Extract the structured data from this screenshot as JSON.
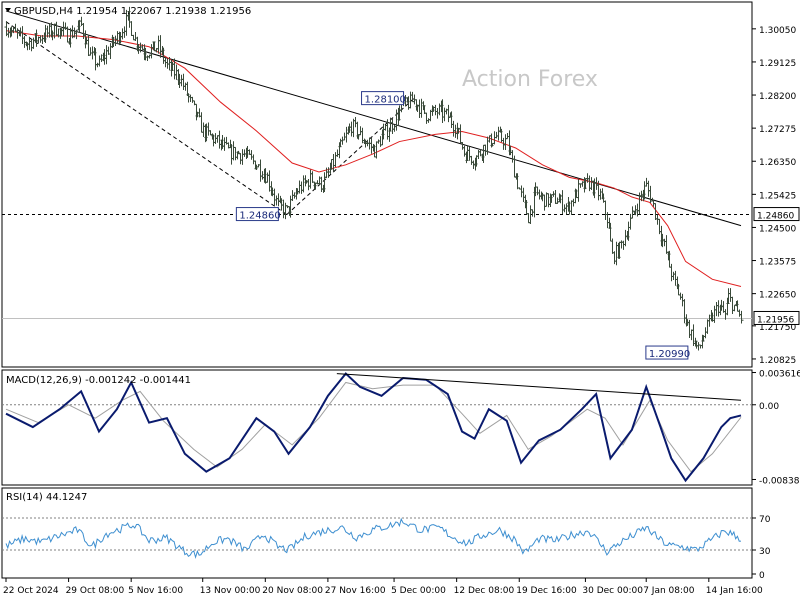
{
  "chart_data": [
    {
      "type": "candlestick",
      "title": "GBPUSD,H4  1.21954 1.22067 1.21938 1.21956",
      "watermark": "Action Forex",
      "ylim": [
        1.206,
        1.308
      ],
      "yticks": [
        1.3005,
        1.29125,
        1.282,
        1.27275,
        1.2635,
        1.25425,
        1.245,
        1.23575,
        1.2265,
        1.2175,
        1.20825
      ],
      "ytick_labels": [
        "1.30050",
        "1.29125",
        "1.28200",
        "1.27275",
        "1.26350",
        "1.25425",
        "1.24500",
        "1.23575",
        "1.22650",
        "1.21750",
        "1.20825"
      ],
      "xticks": [
        {
          "bar": 0,
          "label": "22 Oct 2024"
        },
        {
          "bar": 35,
          "label": "29 Oct 08:00"
        },
        {
          "bar": 70,
          "label": "5 Nov 16:00"
        },
        {
          "bar": 110,
          "label": "13 Nov 00:00"
        },
        {
          "bar": 145,
          "label": "20 Nov 08:00"
        },
        {
          "bar": 180,
          "label": "27 Nov 16:00"
        },
        {
          "bar": 217,
          "label": "5 Dec 00:00"
        },
        {
          "bar": 252,
          "label": "12 Dec 08:00"
        },
        {
          "bar": 287,
          "label": "19 Dec 16:00"
        },
        {
          "bar": 324,
          "label": "30 Dec 00:00"
        },
        {
          "bar": 358,
          "label": "7 Jan 08:00"
        },
        {
          "bar": 393,
          "label": "14 Jan 16:00"
        }
      ],
      "bar_count": 412,
      "price_path": [
        [
          0,
          1.301
        ],
        [
          5,
          1.299
        ],
        [
          12,
          1.2965
        ],
        [
          20,
          1.2985
        ],
        [
          28,
          1.3005
        ],
        [
          35,
          1.2985
        ],
        [
          42,
          1.3015
        ],
        [
          47,
          1.293
        ],
        [
          52,
          1.2905
        ],
        [
          58,
          1.2955
        ],
        [
          64,
          1.2995
        ],
        [
          68,
          1.3035
        ],
        [
          72,
          1.2975
        ],
        [
          78,
          1.294
        ],
        [
          85,
          1.2955
        ],
        [
          90,
          1.29
        ],
        [
          97,
          1.287
        ],
        [
          103,
          1.28
        ],
        [
          110,
          1.272
        ],
        [
          118,
          1.269
        ],
        [
          125,
          1.266
        ],
        [
          133,
          1.2655
        ],
        [
          140,
          1.2625
        ],
        [
          146,
          1.259
        ],
        [
          152,
          1.251
        ],
        [
          157,
          1.2495
        ],
        [
          163,
          1.2555
        ],
        [
          170,
          1.2585
        ],
        [
          177,
          1.257
        ],
        [
          182,
          1.262
        ],
        [
          188,
          1.2685
        ],
        [
          193,
          1.2735
        ],
        [
          200,
          1.2695
        ],
        [
          206,
          1.2665
        ],
        [
          210,
          1.2705
        ],
        [
          216,
          1.274
        ],
        [
          222,
          1.279
        ],
        [
          228,
          1.2805
        ],
        [
          235,
          1.2765
        ],
        [
          242,
          1.2775
        ],
        [
          247,
          1.276
        ],
        [
          252,
          1.2725
        ],
        [
          256,
          1.266
        ],
        [
          262,
          1.264
        ],
        [
          268,
          1.268
        ],
        [
          274,
          1.2705
        ],
        [
          280,
          1.269
        ],
        [
          284,
          1.261
        ],
        [
          289,
          1.252
        ],
        [
          292,
          1.248
        ],
        [
          296,
          1.2545
        ],
        [
          302,
          1.2525
        ],
        [
          308,
          1.253
        ],
        [
          314,
          1.2505
        ],
        [
          320,
          1.2555
        ],
        [
          326,
          1.2575
        ],
        [
          332,
          1.254
        ],
        [
          336,
          1.2475
        ],
        [
          339,
          1.237
        ],
        [
          343,
          1.239
        ],
        [
          348,
          1.2455
        ],
        [
          352,
          1.2505
        ],
        [
          356,
          1.255
        ],
        [
          358,
          1.2565
        ],
        [
          362,
          1.251
        ],
        [
          366,
          1.243
        ],
        [
          369,
          1.238
        ],
        [
          373,
          1.2305
        ],
        [
          377,
          1.2255
        ],
        [
          380,
          1.219
        ],
        [
          384,
          1.214
        ],
        [
          387,
          1.2105
        ],
        [
          390,
          1.215
        ],
        [
          394,
          1.219
        ],
        [
          398,
          1.223
        ],
        [
          402,
          1.2205
        ],
        [
          404,
          1.2255
        ],
        [
          408,
          1.222
        ],
        [
          411,
          1.2196
        ]
      ],
      "ma_path": [
        [
          0,
          1.3
        ],
        [
          20,
          1.2985
        ],
        [
          40,
          1.2985
        ],
        [
          60,
          1.2975
        ],
        [
          80,
          1.2955
        ],
        [
          100,
          1.2895
        ],
        [
          120,
          1.28
        ],
        [
          140,
          1.272
        ],
        [
          160,
          1.263
        ],
        [
          175,
          1.2605
        ],
        [
          190,
          1.2625
        ],
        [
          205,
          1.2655
        ],
        [
          220,
          1.269
        ],
        [
          240,
          1.271
        ],
        [
          255,
          1.2718
        ],
        [
          270,
          1.27
        ],
        [
          285,
          1.2672
        ],
        [
          300,
          1.2625
        ],
        [
          315,
          1.259
        ],
        [
          330,
          1.2575
        ],
        [
          340,
          1.256
        ],
        [
          350,
          1.2535
        ],
        [
          360,
          1.252
        ],
        [
          370,
          1.2455
        ],
        [
          380,
          1.2355
        ],
        [
          395,
          1.2305
        ],
        [
          411,
          1.2285
        ]
      ],
      "trendlines": [
        {
          "from": [
            0,
            1.3055
          ],
          "to": [
            411,
            1.2455
          ],
          "color": "#000000",
          "dashed": false
        },
        {
          "from": [
            0,
            1.3025
          ],
          "to": [
            157,
            1.2486
          ],
          "color": "#000000",
          "dashed": true
        },
        {
          "from": [
            157,
            1.2486
          ],
          "to": [
            228,
            1.281
          ],
          "color": "#000000",
          "dashed": true
        }
      ],
      "horizontal_levels": [
        {
          "value": 1.2486,
          "label": "1.24860",
          "dashed": true,
          "color": "#000000"
        },
        {
          "value": 1.21956,
          "label": "1.21956",
          "dashed": false,
          "color": "#c0c0c0"
        }
      ],
      "annotations": [
        {
          "text": "1.28100",
          "bar": 210,
          "price": 1.281
        },
        {
          "text": "1.24860",
          "bar": 140,
          "price": 1.2486
        },
        {
          "text": "1.20990",
          "bar": 369,
          "price": 1.2099
        }
      ]
    },
    {
      "type": "line",
      "title": "MACD(12,26,9) -0.001242 -0.001441",
      "ylim": [
        -0.009,
        0.0039
      ],
      "yticks": [
        0.003616,
        0.0,
        -0.00838
      ],
      "ytick_labels": [
        "0.003616",
        "0.00",
        "-0.00838"
      ],
      "dotted_levels": [
        0.0
      ],
      "series": [
        {
          "name": "MACD",
          "color": "#0a1b6e",
          "points": [
            [
              0,
              -0.001
            ],
            [
              15,
              -0.0025
            ],
            [
              30,
              -0.0005
            ],
            [
              42,
              0.0015
            ],
            [
              52,
              -0.003
            ],
            [
              62,
              -0.0005
            ],
            [
              70,
              0.0025
            ],
            [
              80,
              -0.002
            ],
            [
              90,
              -0.0015
            ],
            [
              100,
              -0.0055
            ],
            [
              112,
              -0.0075
            ],
            [
              125,
              -0.006
            ],
            [
              140,
              -0.0015
            ],
            [
              150,
              -0.003
            ],
            [
              158,
              -0.0055
            ],
            [
              170,
              -0.0025
            ],
            [
              180,
              0.001
            ],
            [
              190,
              0.0035
            ],
            [
              198,
              0.002
            ],
            [
              210,
              0.001
            ],
            [
              222,
              0.003
            ],
            [
              235,
              0.0028
            ],
            [
              247,
              0.0012
            ],
            [
              255,
              -0.003
            ],
            [
              262,
              -0.0038
            ],
            [
              270,
              -0.0005
            ],
            [
              280,
              -0.0018
            ],
            [
              288,
              -0.0065
            ],
            [
              298,
              -0.004
            ],
            [
              310,
              -0.0028
            ],
            [
              322,
              -0.0005
            ],
            [
              330,
              0.0012
            ],
            [
              338,
              -0.006
            ],
            [
              350,
              -0.0028
            ],
            [
              358,
              0.002
            ],
            [
              366,
              -0.0025
            ],
            [
              372,
              -0.006
            ],
            [
              380,
              -0.0085
            ],
            [
              390,
              -0.006
            ],
            [
              400,
              -0.0025
            ],
            [
              405,
              -0.0015
            ],
            [
              411,
              -0.0012
            ]
          ]
        },
        {
          "name": "Signal",
          "color": "#a0a0a0",
          "points": [
            [
              0,
              -0.0005
            ],
            [
              18,
              -0.002
            ],
            [
              35,
              0.0
            ],
            [
              50,
              -0.0015
            ],
            [
              65,
              0.0005
            ],
            [
              75,
              0.0015
            ],
            [
              88,
              -0.0018
            ],
            [
              105,
              -0.005
            ],
            [
              118,
              -0.007
            ],
            [
              132,
              -0.005
            ],
            [
              145,
              -0.0022
            ],
            [
              160,
              -0.0045
            ],
            [
              175,
              -0.0015
            ],
            [
              190,
              0.0025
            ],
            [
              205,
              0.0018
            ],
            [
              222,
              0.0022
            ],
            [
              240,
              0.0022
            ],
            [
              255,
              -0.001
            ],
            [
              265,
              -0.0032
            ],
            [
              280,
              -0.0012
            ],
            [
              292,
              -0.005
            ],
            [
              305,
              -0.0035
            ],
            [
              325,
              -0.0005
            ],
            [
              335,
              -0.0015
            ],
            [
              345,
              -0.0045
            ],
            [
              360,
              0.0005
            ],
            [
              370,
              -0.004
            ],
            [
              383,
              -0.0075
            ],
            [
              395,
              -0.0055
            ],
            [
              411,
              -0.0014
            ]
          ]
        }
      ],
      "trendlines": [
        {
          "from": [
            185,
            0.0035
          ],
          "to": [
            411,
            0.0005
          ],
          "color": "#000000"
        }
      ]
    },
    {
      "type": "line",
      "title": "RSI(14) 44.1247",
      "ylim": [
        0,
        100
      ],
      "yticks": [
        70,
        30,
        0
      ],
      "ytick_labels": [
        "70",
        "30",
        "0"
      ],
      "dotted_levels": [
        70,
        30
      ],
      "series": [
        {
          "name": "RSI(14)",
          "color": "#3e8fd0",
          "points": [
            [
              0,
              35
            ],
            [
              10,
              44
            ],
            [
              20,
              40
            ],
            [
              30,
              48
            ],
            [
              40,
              55
            ],
            [
              48,
              34
            ],
            [
              56,
              50
            ],
            [
              66,
              58
            ],
            [
              72,
              62
            ],
            [
              80,
              42
            ],
            [
              90,
              45
            ],
            [
              100,
              28
            ],
            [
              108,
              24
            ],
            [
              116,
              40
            ],
            [
              124,
              44
            ],
            [
              134,
              30
            ],
            [
              144,
              50
            ],
            [
              152,
              34
            ],
            [
              158,
              30
            ],
            [
              168,
              48
            ],
            [
              178,
              54
            ],
            [
              188,
              58
            ],
            [
              196,
              46
            ],
            [
              206,
              56
            ],
            [
              214,
              60
            ],
            [
              222,
              66
            ],
            [
              232,
              55
            ],
            [
              242,
              58
            ],
            [
              250,
              46
            ],
            [
              258,
              38
            ],
            [
              266,
              48
            ],
            [
              276,
              55
            ],
            [
              284,
              44
            ],
            [
              290,
              26
            ],
            [
              298,
              44
            ],
            [
              308,
              42
            ],
            [
              318,
              50
            ],
            [
              326,
              54
            ],
            [
              336,
              28
            ],
            [
              344,
              40
            ],
            [
              352,
              50
            ],
            [
              358,
              58
            ],
            [
              364,
              46
            ],
            [
              370,
              36
            ],
            [
              378,
              34
            ],
            [
              386,
              30
            ],
            [
              394,
              42
            ],
            [
              402,
              54
            ],
            [
              406,
              50
            ],
            [
              411,
              44
            ]
          ]
        }
      ]
    }
  ]
}
